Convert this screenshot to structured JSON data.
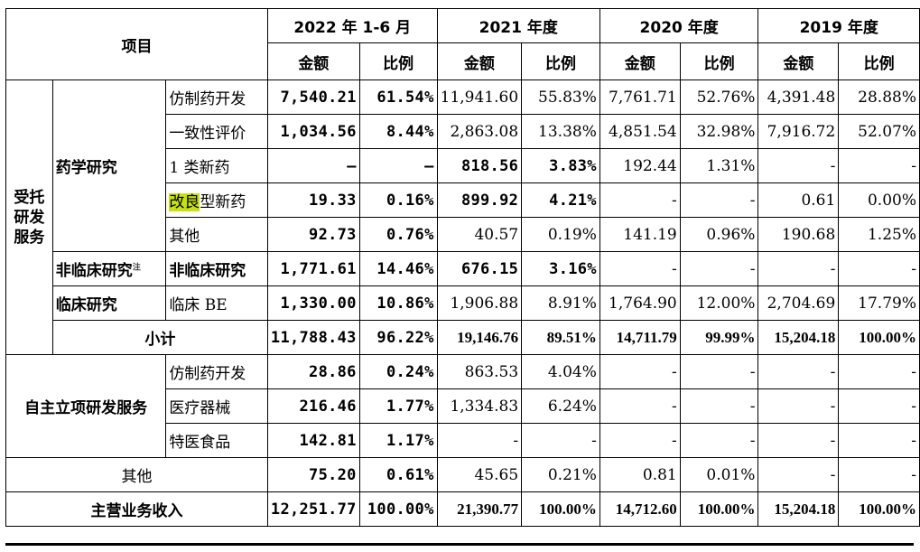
{
  "header": {
    "item_label": "项目",
    "periods": [
      "2022 年 1-6 月",
      "2021 年度",
      "2020 年度",
      "2019 年度"
    ],
    "amount_label": "金额",
    "ratio_label": "比例"
  },
  "groups": {
    "entrusted": "受托\n研发\n服务",
    "pharma": "药学研究",
    "nonclinical": "非临床研究",
    "nonclinical_note": "注",
    "clinical": "临床研究",
    "subtotal": "小计",
    "self": "自主立项研发服务",
    "other": "其他",
    "total": "主营业务收入"
  },
  "rows": {
    "generic": {
      "label": "仿制药开发",
      "v": [
        "7,540.21",
        "61.54%",
        "11,941.60",
        "55.83%",
        "7,761.71",
        "52.76%",
        "4,391.48",
        "28.88%"
      ]
    },
    "consistency": {
      "label": "一致性评价",
      "v": [
        "1,034.56",
        "8.44%",
        "2,863.08",
        "13.38%",
        "4,851.54",
        "32.98%",
        "7,916.72",
        "52.07%"
      ]
    },
    "class1": {
      "label": "1 类新药",
      "v": [
        "–",
        "–",
        "818.56",
        "3.83%",
        "192.44",
        "1.31%",
        "-",
        "-"
      ]
    },
    "improved": {
      "label_hl": "改良",
      "label_rest": "型新药",
      "v": [
        "19.33",
        "0.16%",
        "899.92",
        "4.21%",
        "-",
        "-",
        "0.61",
        "0.00%"
      ]
    },
    "pharma_other": {
      "label": "其他",
      "v": [
        "92.73",
        "0.76%",
        "40.57",
        "0.19%",
        "141.19",
        "0.96%",
        "190.68",
        "1.25%"
      ]
    },
    "nonclinical": {
      "label": "非临床研究",
      "v": [
        "1,771.61",
        "14.46%",
        "676.15",
        "3.16%",
        "-",
        "-",
        "-",
        "-"
      ]
    },
    "clinical_be": {
      "label": "临床 BE",
      "v": [
        "1,330.00",
        "10.86%",
        "1,906.88",
        "8.91%",
        "1,764.90",
        "12.00%",
        "2,704.69",
        "17.79%"
      ]
    },
    "subtotal": {
      "v": [
        "11,788.43",
        "96.22%",
        "19,146.76",
        "89.51%",
        "14,711.79",
        "99.99%",
        "15,204.18",
        "100.00%"
      ]
    },
    "self_generic": {
      "label": "仿制药开发",
      "v": [
        "28.86",
        "0.24%",
        "863.53",
        "4.04%",
        "-",
        "-",
        "-",
        "-"
      ]
    },
    "self_device": {
      "label": "医疗器械",
      "v": [
        "216.46",
        "1.77%",
        "1,334.83",
        "6.24%",
        "-",
        "-",
        "-",
        "-"
      ]
    },
    "self_food": {
      "label": "特医食品",
      "v": [
        "142.81",
        "1.17%",
        "-",
        "-",
        "-",
        "-",
        "-",
        "-"
      ]
    },
    "other": {
      "v": [
        "75.20",
        "0.61%",
        "45.65",
        "0.21%",
        "0.81",
        "0.01%",
        "-",
        "-"
      ]
    },
    "total": {
      "v": [
        "12,251.77",
        "100.00%",
        "21,390.77",
        "100.00%",
        "14,712.60",
        "100.00%",
        "15,204.18",
        "100.00%"
      ]
    }
  },
  "colors": {
    "highlight": "#c6e012",
    "border": "#000000"
  }
}
